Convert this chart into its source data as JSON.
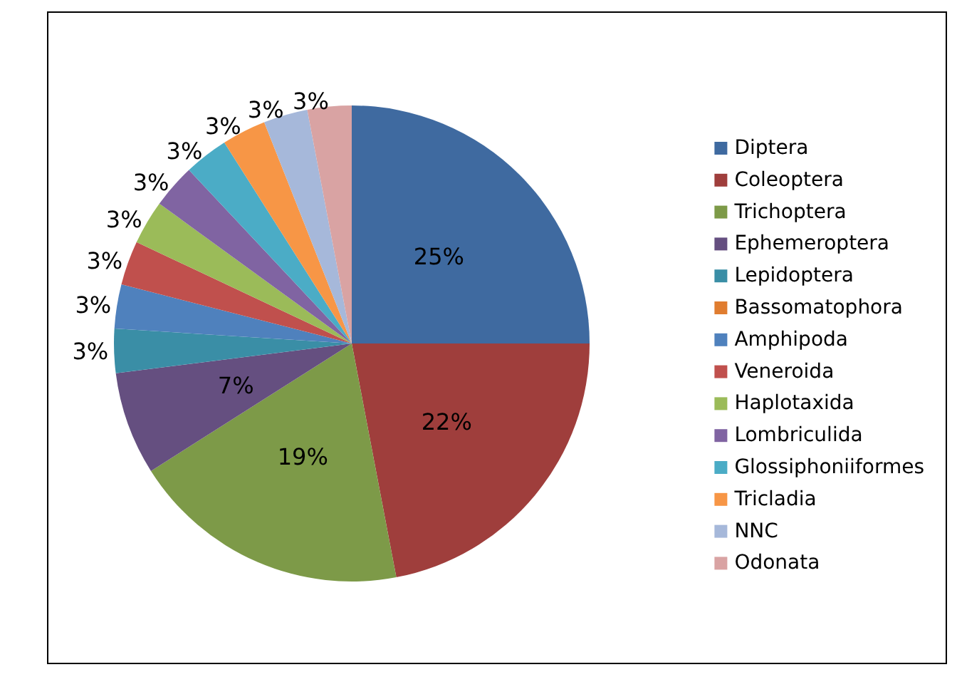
{
  "chart_data": {
    "type": "pie",
    "categories": [
      "Diptera",
      "Coleoptera",
      "Trichoptera",
      "Ephemeroptera",
      "Lepidoptera",
      "Bassomatophora",
      "Amphipoda",
      "Veneroida",
      "Haplotaxida",
      "Lombriculida",
      "Glossiphoniiformes",
      "Tricladia",
      "NNC",
      "Odonata"
    ],
    "values": [
      25,
      22,
      19,
      7,
      3,
      0,
      3,
      3,
      3,
      3,
      3,
      3,
      3,
      3
    ],
    "value_labels": [
      "25%",
      "22%",
      "19%",
      "7%",
      "3%",
      null,
      "3%",
      "3%",
      "3%",
      "3%",
      "3%",
      "3%",
      "3%",
      "3%"
    ],
    "colors": [
      "#3f6aa0",
      "#9f3e3c",
      "#7d9a48",
      "#654f80",
      "#3a8ea6",
      "#e07d30",
      "#4f81bd",
      "#c0504d",
      "#9bbb59",
      "#8064a2",
      "#4bacc6",
      "#f79646",
      "#a6b8da",
      "#d9a3a3"
    ],
    "legend": "right"
  }
}
